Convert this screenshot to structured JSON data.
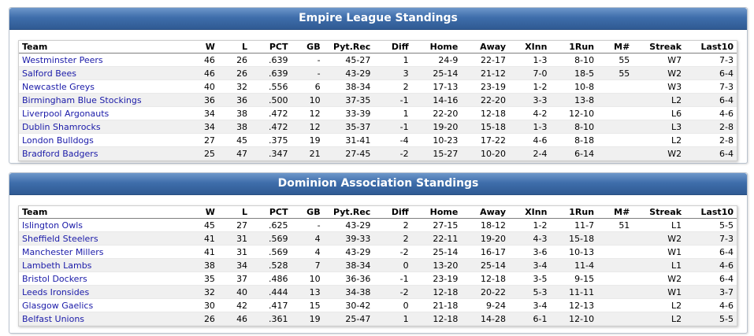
{
  "columns": [
    "Team",
    "W",
    "L",
    "PCT",
    "GB",
    "Pyt.Rec",
    "Diff",
    "Home",
    "Away",
    "XInn",
    "1Run",
    "M#",
    "Streak",
    "Last10"
  ],
  "colors": {
    "header_blue": "#3f6eab",
    "link": "#1a1aa8"
  },
  "tables": [
    {
      "title": "Empire League Standings",
      "rows": [
        [
          "Westminster Peers",
          "46",
          "26",
          ".639",
          "-",
          "45-27",
          "1",
          "24-9",
          "22-17",
          "1-3",
          "8-10",
          "55",
          "W7",
          "7-3"
        ],
        [
          "Salford Bees",
          "46",
          "26",
          ".639",
          "-",
          "43-29",
          "3",
          "25-14",
          "21-12",
          "7-0",
          "18-5",
          "55",
          "W2",
          "6-4"
        ],
        [
          "Newcastle Greys",
          "40",
          "32",
          ".556",
          "6",
          "38-34",
          "2",
          "17-13",
          "23-19",
          "1-2",
          "10-8",
          "",
          "W3",
          "7-3"
        ],
        [
          "Birmingham Blue Stockings",
          "36",
          "36",
          ".500",
          "10",
          "37-35",
          "-1",
          "14-16",
          "22-20",
          "3-3",
          "13-8",
          "",
          "L2",
          "6-4"
        ],
        [
          "Liverpool Argonauts",
          "34",
          "38",
          ".472",
          "12",
          "33-39",
          "1",
          "22-20",
          "12-18",
          "4-2",
          "12-10",
          "",
          "L6",
          "4-6"
        ],
        [
          "Dublin Shamrocks",
          "34",
          "38",
          ".472",
          "12",
          "35-37",
          "-1",
          "19-20",
          "15-18",
          "1-3",
          "8-10",
          "",
          "L3",
          "2-8"
        ],
        [
          "London Bulldogs",
          "27",
          "45",
          ".375",
          "19",
          "31-41",
          "-4",
          "10-23",
          "17-22",
          "4-6",
          "8-18",
          "",
          "L2",
          "2-8"
        ],
        [
          "Bradford Badgers",
          "25",
          "47",
          ".347",
          "21",
          "27-45",
          "-2",
          "15-27",
          "10-20",
          "2-4",
          "6-14",
          "",
          "W2",
          "6-4"
        ]
      ]
    },
    {
      "title": "Dominion Association Standings",
      "rows": [
        [
          "Islington Owls",
          "45",
          "27",
          ".625",
          "-",
          "43-29",
          "2",
          "27-15",
          "18-12",
          "1-2",
          "11-7",
          "51",
          "L1",
          "5-5"
        ],
        [
          "Sheffield Steelers",
          "41",
          "31",
          ".569",
          "4",
          "39-33",
          "2",
          "22-11",
          "19-20",
          "4-3",
          "15-18",
          "",
          "W2",
          "7-3"
        ],
        [
          "Manchester Millers",
          "41",
          "31",
          ".569",
          "4",
          "43-29",
          "-2",
          "25-14",
          "16-17",
          "3-6",
          "10-13",
          "",
          "W1",
          "6-4"
        ],
        [
          "Lambeth Lambs",
          "38",
          "34",
          ".528",
          "7",
          "38-34",
          "0",
          "13-20",
          "25-14",
          "3-4",
          "11-4",
          "",
          "L1",
          "4-6"
        ],
        [
          "Bristol Dockers",
          "35",
          "37",
          ".486",
          "10",
          "36-36",
          "-1",
          "23-19",
          "12-18",
          "3-5",
          "9-15",
          "",
          "W2",
          "6-4"
        ],
        [
          "Leeds Ironsides",
          "32",
          "40",
          ".444",
          "13",
          "34-38",
          "-2",
          "12-18",
          "20-22",
          "5-3",
          "11-11",
          "",
          "W1",
          "3-7"
        ],
        [
          "Glasgow Gaelics",
          "30",
          "42",
          ".417",
          "15",
          "30-42",
          "0",
          "21-18",
          "9-24",
          "3-4",
          "12-13",
          "",
          "L2",
          "4-6"
        ],
        [
          "Belfast Unions",
          "26",
          "46",
          ".361",
          "19",
          "25-47",
          "1",
          "12-18",
          "14-28",
          "6-1",
          "12-10",
          "",
          "L2",
          "5-5"
        ]
      ]
    }
  ]
}
